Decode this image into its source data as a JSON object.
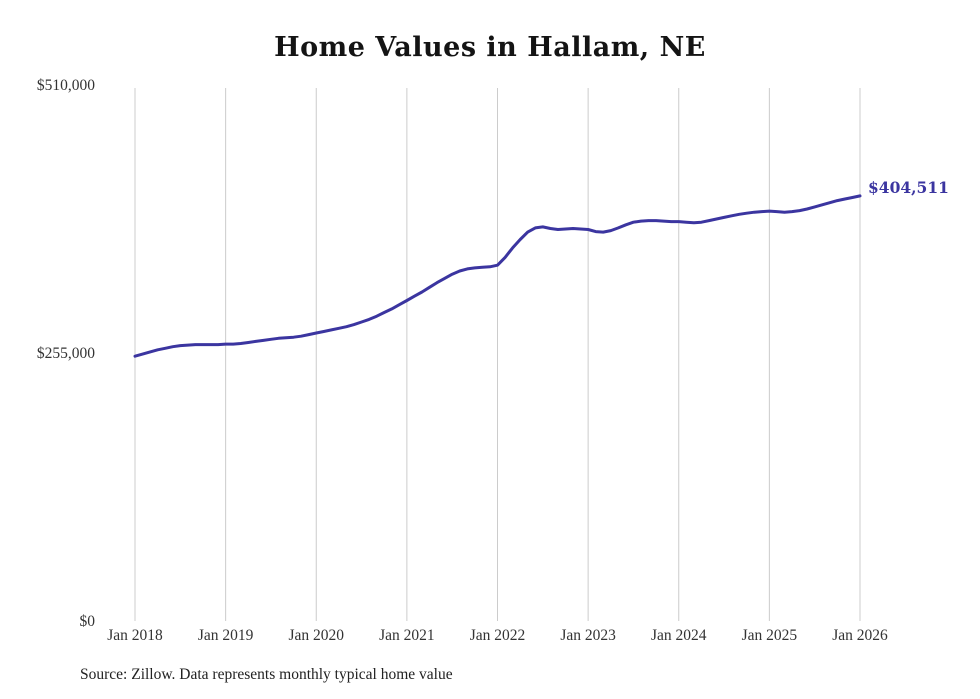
{
  "title": "Home Values in Hallam, NE",
  "end_label": "$404,511",
  "source": "Source: Zillow. Data represents monthly typical home value",
  "colors": {
    "line": "#3b35a0",
    "grid": "#cccccc",
    "axis_text": "#333333",
    "title": "#141414",
    "end_label": "#3b35a0",
    "background": "#ffffff"
  },
  "chart_data": {
    "type": "line",
    "title": "Home Values in Hallam, NE",
    "xlabel": "",
    "ylabel": "",
    "ylim": [
      0,
      510000
    ],
    "grid": "vertical",
    "legend": "none",
    "end_annotation": "$404,511",
    "y_ticks": [
      {
        "value": 0,
        "label": "$0"
      },
      {
        "value": 255000,
        "label": "$255,000"
      },
      {
        "value": 510000,
        "label": "$510,000"
      }
    ],
    "x_tick_labels": [
      "Jan 2018",
      "Jan 2019",
      "Jan 2020",
      "Jan 2021",
      "Jan 2022",
      "Jan 2023",
      "Jan 2024",
      "Jan 2025",
      "Jan 2026"
    ],
    "x": [
      "2018-01",
      "2018-02",
      "2018-03",
      "2018-04",
      "2018-05",
      "2018-06",
      "2018-07",
      "2018-08",
      "2018-09",
      "2018-10",
      "2018-11",
      "2018-12",
      "2019-01",
      "2019-02",
      "2019-03",
      "2019-04",
      "2019-05",
      "2019-06",
      "2019-07",
      "2019-08",
      "2019-09",
      "2019-10",
      "2019-11",
      "2019-12",
      "2020-01",
      "2020-02",
      "2020-03",
      "2020-04",
      "2020-05",
      "2020-06",
      "2020-07",
      "2020-08",
      "2020-09",
      "2020-10",
      "2020-11",
      "2020-12",
      "2021-01",
      "2021-02",
      "2021-03",
      "2021-04",
      "2021-05",
      "2021-06",
      "2021-07",
      "2021-08",
      "2021-09",
      "2021-10",
      "2021-11",
      "2021-12",
      "2022-01",
      "2022-02",
      "2022-03",
      "2022-04",
      "2022-05",
      "2022-06",
      "2022-07",
      "2022-08",
      "2022-09",
      "2022-10",
      "2022-11",
      "2022-12",
      "2023-01",
      "2023-02",
      "2023-03",
      "2023-04",
      "2023-05",
      "2023-06",
      "2023-07",
      "2023-08",
      "2023-09",
      "2023-10",
      "2023-11",
      "2023-12",
      "2024-01",
      "2024-02",
      "2024-03",
      "2024-04",
      "2024-05",
      "2024-06",
      "2024-07",
      "2024-08",
      "2024-09",
      "2024-10",
      "2024-11",
      "2024-12",
      "2025-01",
      "2025-02",
      "2025-03",
      "2025-04",
      "2025-05",
      "2025-06",
      "2025-07",
      "2025-08",
      "2025-09",
      "2025-10",
      "2025-11",
      "2025-12",
      "2026-01"
    ],
    "values": [
      252000,
      254000,
      256000,
      258000,
      259500,
      261000,
      262000,
      262500,
      263000,
      263000,
      263000,
      263000,
      263500,
      263500,
      264000,
      265000,
      266000,
      267000,
      268000,
      269000,
      269500,
      270000,
      271000,
      272500,
      274000,
      275500,
      277000,
      278500,
      280000,
      282000,
      284500,
      287000,
      290000,
      293500,
      297000,
      301000,
      305000,
      309000,
      313000,
      317500,
      322000,
      326000,
      330000,
      333000,
      335000,
      336000,
      336500,
      337000,
      338500,
      346000,
      355000,
      363000,
      370000,
      374000,
      375000,
      373500,
      372500,
      373000,
      373500,
      373000,
      372500,
      370500,
      370000,
      371500,
      374000,
      377000,
      379500,
      380500,
      381000,
      381000,
      380500,
      380000,
      380000,
      379500,
      379000,
      379500,
      381000,
      382500,
      384000,
      385500,
      387000,
      388000,
      389000,
      389500,
      390000,
      389500,
      389000,
      389500,
      390500,
      392000,
      394000,
      396000,
      398000,
      400000,
      401500,
      403000,
      404511
    ]
  }
}
